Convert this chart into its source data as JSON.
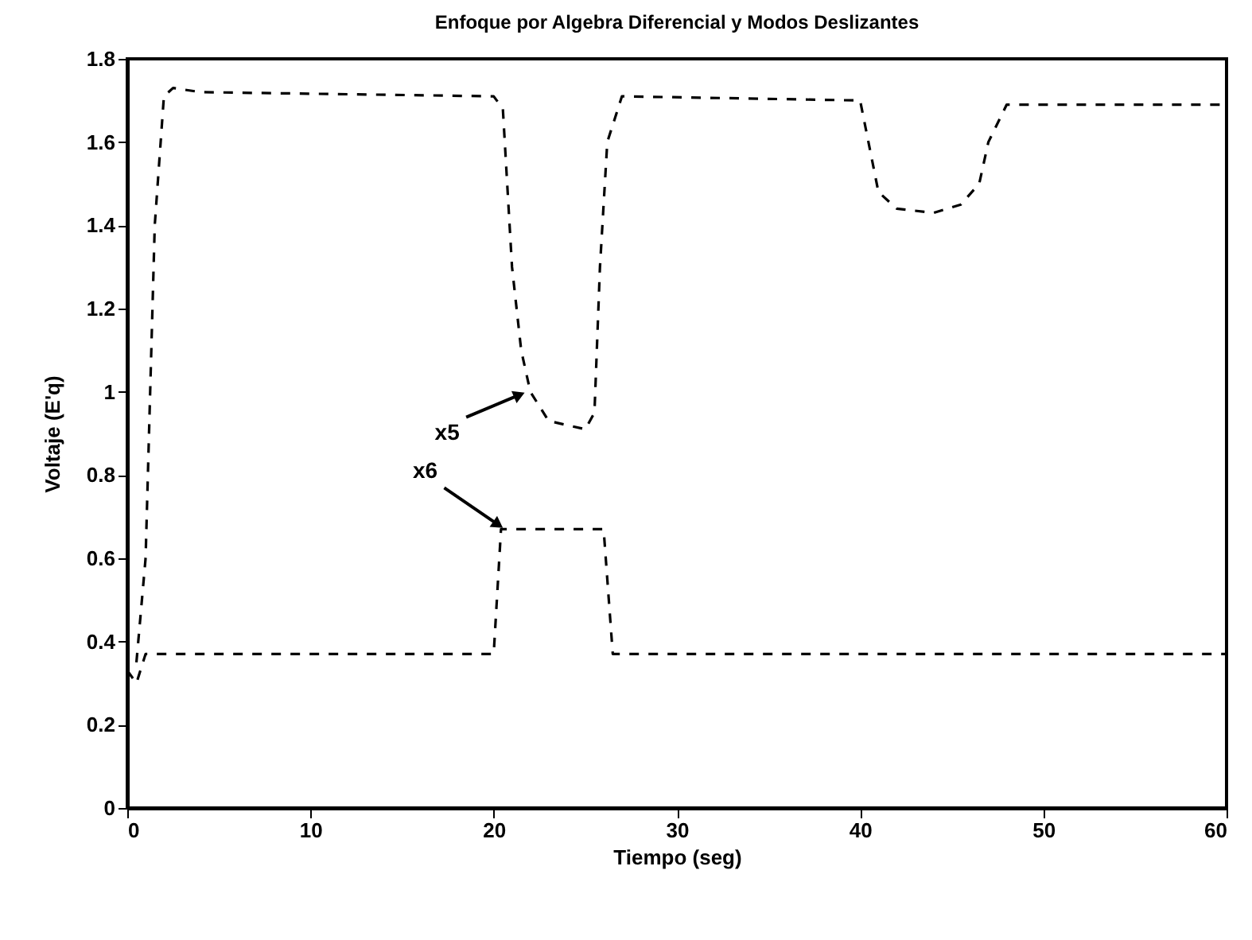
{
  "chart_data": {
    "type": "line",
    "title": "Enfoque por Algebra Diferencial y Modos Deslizantes",
    "xlabel": "Tiempo (seg)",
    "ylabel": "Voltaje (E'q)",
    "xlim": [
      0,
      60
    ],
    "xticks": [
      0,
      10,
      20,
      30,
      40,
      50,
      60
    ],
    "ylim": [
      0,
      1.8
    ],
    "yticks": [
      0,
      0.2,
      0.4,
      0.6,
      0.8,
      1,
      1.2,
      1.4,
      1.6,
      1.8
    ],
    "grid": false,
    "marker": "none",
    "series": [
      {
        "color": "#000000",
        "line_style": "dashed",
        "x": [
          0.5,
          1,
          1.5,
          2,
          2.5,
          4,
          20,
          20.5,
          21,
          21.5,
          22,
          23,
          25,
          25.5,
          25.8,
          26.2,
          27,
          40,
          41,
          42,
          44,
          45.5,
          46.5,
          47,
          48,
          60
        ],
        "values": [
          0.35,
          0.6,
          1.4,
          1.71,
          1.73,
          1.72,
          1.71,
          1.68,
          1.3,
          1.1,
          1.0,
          0.93,
          0.91,
          0.95,
          1.3,
          1.6,
          1.71,
          1.7,
          1.48,
          1.44,
          1.43,
          1.45,
          1.5,
          1.6,
          1.69,
          1.69
        ]
      },
      {
        "color": "#000000",
        "line_style": "dashed",
        "x": [
          0,
          0.5,
          1,
          4,
          20,
          20.4,
          26,
          26.5,
          60
        ],
        "values": [
          0.33,
          0.3,
          0.37,
          0.37,
          0.37,
          0.67,
          0.67,
          0.37,
          0.37
        ]
      }
    ],
    "annotations": [
      {
        "text": "x5",
        "x": 21.8,
        "y": 1.0
      },
      {
        "text": "x6",
        "x": 20.6,
        "y": 0.67
      }
    ]
  }
}
